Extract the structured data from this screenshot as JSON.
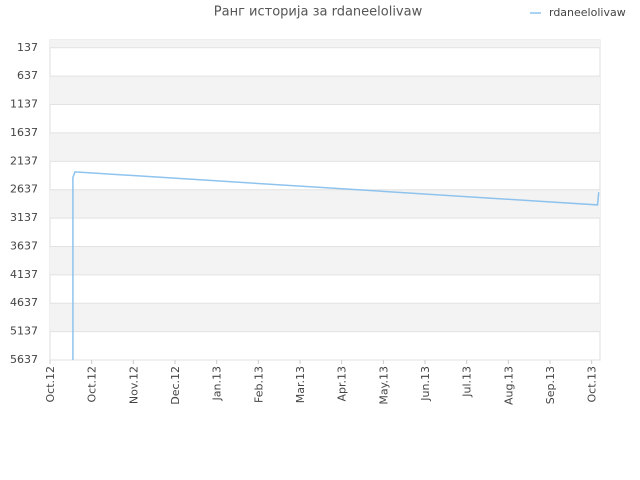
{
  "chart_data": {
    "type": "line",
    "title": "Ранг историја за rdaneelolivaw",
    "ylim": [
      5637,
      0
    ],
    "yticks": [
      137,
      637,
      1137,
      1637,
      2137,
      2637,
      3137,
      3637,
      4137,
      4637,
      5137,
      5637
    ],
    "xlim": [
      0,
      13.2
    ],
    "xticks": [
      {
        "value": 0,
        "label": "Oct.12"
      },
      {
        "value": 1,
        "label": "Oct.12"
      },
      {
        "value": 2,
        "label": "Nov.12"
      },
      {
        "value": 3,
        "label": "Dec.12"
      },
      {
        "value": 4,
        "label": "Jan.13"
      },
      {
        "value": 5,
        "label": "Feb.13"
      },
      {
        "value": 6,
        "label": "Mar.13"
      },
      {
        "value": 7,
        "label": "Apr.13"
      },
      {
        "value": 8,
        "label": "May.13"
      },
      {
        "value": 9,
        "label": "Jun.13"
      },
      {
        "value": 10,
        "label": "Jul.13"
      },
      {
        "value": 11,
        "label": "Aug.13"
      },
      {
        "value": 12,
        "label": "Sep.13"
      },
      {
        "value": 13,
        "label": "Oct.13"
      }
    ],
    "grid": true,
    "legend": "top-right",
    "series": [
      {
        "name": "rdaneelolivaw",
        "color": "#8ec3ee",
        "x": [
          0.55,
          0.55,
          0.6,
          13.14,
          13.17
        ],
        "values": [
          5637,
          2420,
          2323,
          2905,
          2680
        ]
      }
    ]
  }
}
